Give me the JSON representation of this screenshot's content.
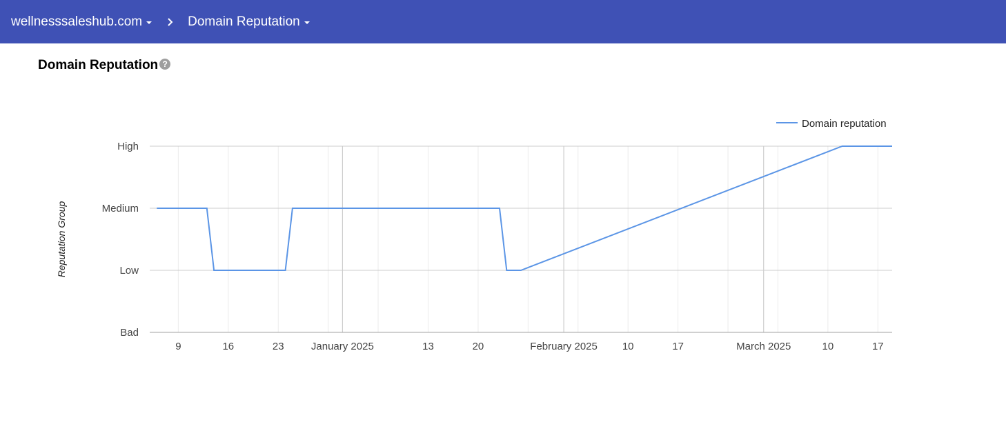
{
  "header": {
    "domain_label": "wellnesssaleshub.com",
    "page_label": "Domain Reputation",
    "separator": "›"
  },
  "section": {
    "title": "Domain Reputation",
    "help": "?"
  },
  "colors": {
    "header_bg": "#3f51b5",
    "series_line": "#5b95e6"
  },
  "icons": [
    "dropdown-caret-icon",
    "chevron-right-icon",
    "help-circle-icon"
  ],
  "chart_data": {
    "type": "line",
    "title": "",
    "xlabel": "",
    "ylabel": "Reputation Group",
    "y_categories": [
      "Bad",
      "Low",
      "Medium",
      "High"
    ],
    "legend_position": "top-right",
    "grid": true,
    "x_range": [
      "2024-12-05",
      "2025-03-19"
    ],
    "x_ticks": [
      {
        "date": "2024-12-09",
        "label": "9"
      },
      {
        "date": "2024-12-16",
        "label": "16"
      },
      {
        "date": "2024-12-23",
        "label": "23"
      },
      {
        "date": "2025-01-01",
        "label": "January 2025"
      },
      {
        "date": "2025-01-13",
        "label": "13"
      },
      {
        "date": "2025-01-20",
        "label": "20"
      },
      {
        "date": "2025-02-01",
        "label": "February 2025"
      },
      {
        "date": "2025-02-10",
        "label": "10"
      },
      {
        "date": "2025-02-17",
        "label": "17"
      },
      {
        "date": "2025-03-01",
        "label": "March 2025"
      },
      {
        "date": "2025-03-10",
        "label": "10"
      },
      {
        "date": "2025-03-17",
        "label": "17"
      }
    ],
    "series": [
      {
        "name": "Domain reputation",
        "points": [
          {
            "x": "2024-12-06",
            "y": "Medium"
          },
          {
            "x": "2024-12-13",
            "y": "Medium"
          },
          {
            "x": "2024-12-14",
            "y": "Low"
          },
          {
            "x": "2024-12-24",
            "y": "Low"
          },
          {
            "x": "2024-12-25",
            "y": "Medium"
          },
          {
            "x": "2025-01-23",
            "y": "Medium"
          },
          {
            "x": "2025-01-24",
            "y": "Low"
          },
          {
            "x": "2025-01-26",
            "y": "Low"
          },
          {
            "x": "2025-03-12",
            "y": "High"
          },
          {
            "x": "2025-03-19",
            "y": "High"
          }
        ]
      }
    ]
  }
}
